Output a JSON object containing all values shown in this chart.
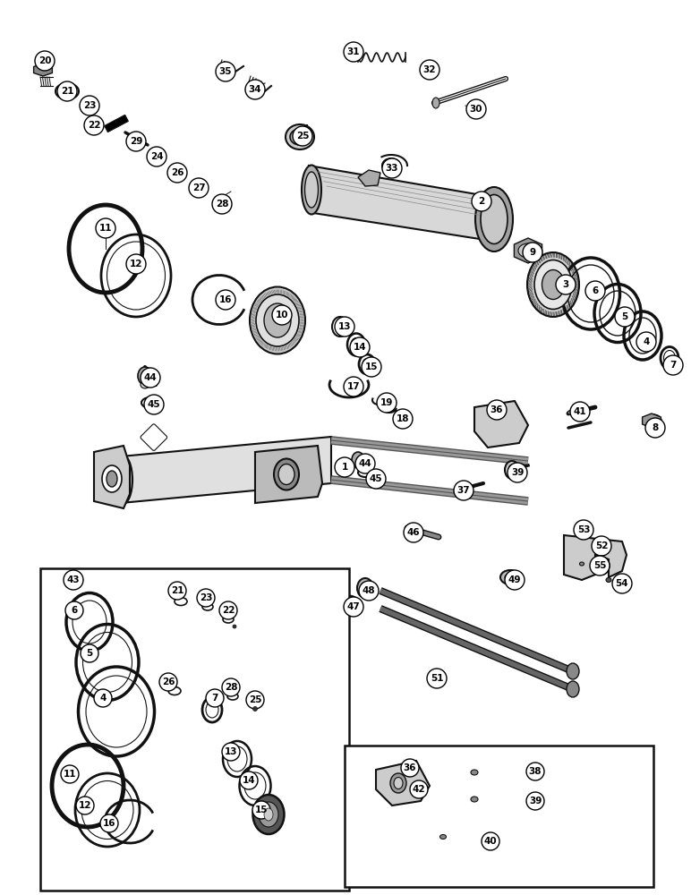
{
  "bg": "#ffffff",
  "lc": "#111111",
  "parts": {
    "callout_r": 11,
    "callout_fs": 7.5
  }
}
